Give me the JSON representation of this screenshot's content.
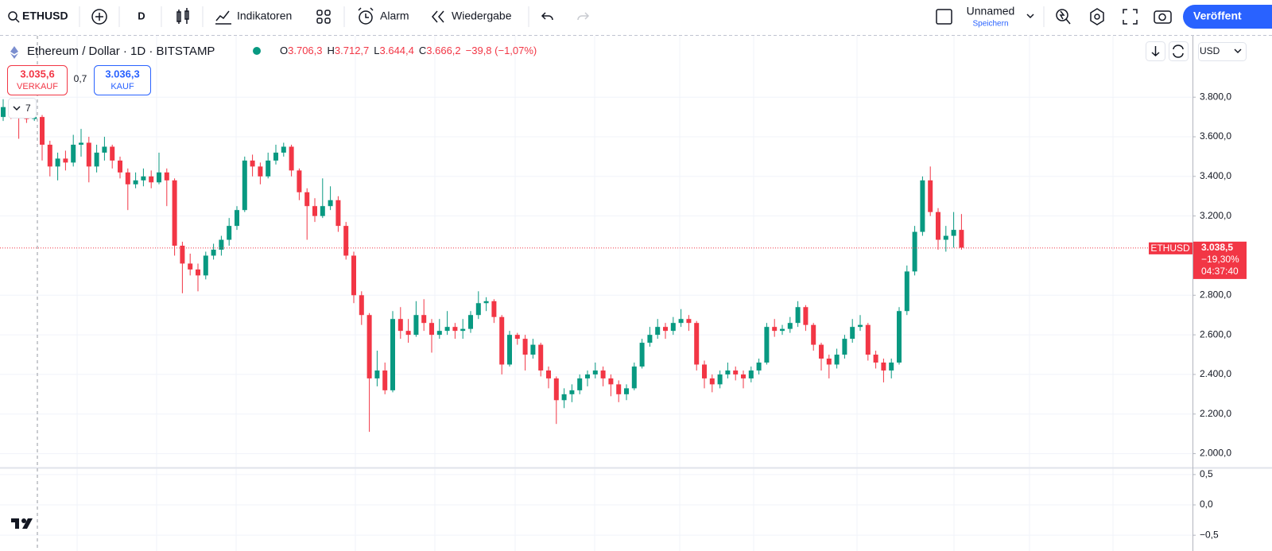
{
  "toolbar": {
    "symbol": "ETHUSD",
    "interval": "D",
    "indicators": "Indikatoren",
    "alert": "Alarm",
    "replay": "Wiedergabe",
    "layout_name": "Unnamed",
    "save": "Speichern",
    "publish": "Veröffent"
  },
  "legend": {
    "title": "Ethereum / Dollar · 1D · BITSTAMP",
    "ohlc": [
      {
        "label": "O",
        "value": "3.706,3"
      },
      {
        "label": "H",
        "value": "3.712,7"
      },
      {
        "label": "L",
        "value": "3.644,4"
      },
      {
        "label": "C",
        "value": "3.666,2"
      }
    ],
    "change": "−39,8 (−1,07%)"
  },
  "trade": {
    "sell_price": "3.035,6",
    "sell": "VERKAUF",
    "spread": "0,7",
    "buy_price": "3.036,3",
    "buy": "KAUF"
  },
  "collapse_count": "7",
  "currency": "USD",
  "chart_data": {
    "type": "candlestick",
    "up_color": "#089981",
    "down_color": "#f23645",
    "candles": [
      [
        3700,
        3790,
        3680,
        3750
      ],
      [
        3750,
        3760,
        3690,
        3720
      ],
      [
        3720,
        3730,
        3590,
        3700
      ],
      [
        3700,
        3720,
        3670,
        3690
      ],
      [
        3690,
        3720,
        3680,
        3700
      ],
      [
        3700,
        3710,
        3480,
        3560
      ],
      [
        3560,
        3580,
        3400,
        3450
      ],
      [
        3450,
        3520,
        3380,
        3490
      ],
      [
        3490,
        3530,
        3430,
        3470
      ],
      [
        3470,
        3610,
        3450,
        3560
      ],
      [
        3560,
        3640,
        3500,
        3570
      ],
      [
        3570,
        3600,
        3370,
        3450
      ],
      [
        3450,
        3560,
        3420,
        3520
      ],
      [
        3520,
        3600,
        3480,
        3550
      ],
      [
        3550,
        3560,
        3440,
        3480
      ],
      [
        3480,
        3500,
        3390,
        3420
      ],
      [
        3420,
        3440,
        3230,
        3360
      ],
      [
        3360,
        3420,
        3340,
        3380
      ],
      [
        3380,
        3440,
        3350,
        3400
      ],
      [
        3400,
        3430,
        3340,
        3370
      ],
      [
        3370,
        3520,
        3360,
        3420
      ],
      [
        3420,
        3440,
        3250,
        3380
      ],
      [
        3380,
        3390,
        3000,
        3050
      ],
      [
        3050,
        3070,
        2810,
        2960
      ],
      [
        2960,
        3010,
        2900,
        2930
      ],
      [
        2930,
        2960,
        2820,
        2900
      ],
      [
        2900,
        3020,
        2880,
        3000
      ],
      [
        3000,
        3060,
        2980,
        3030
      ],
      [
        3030,
        3100,
        3000,
        3080
      ],
      [
        3080,
        3190,
        3050,
        3150
      ],
      [
        3150,
        3250,
        3130,
        3230
      ],
      [
        3230,
        3500,
        3220,
        3480
      ],
      [
        3480,
        3510,
        3400,
        3450
      ],
      [
        3450,
        3470,
        3360,
        3400
      ],
      [
        3400,
        3520,
        3390,
        3480
      ],
      [
        3480,
        3560,
        3460,
        3520
      ],
      [
        3520,
        3570,
        3500,
        3550
      ],
      [
        3550,
        3560,
        3400,
        3430
      ],
      [
        3430,
        3440,
        3280,
        3320
      ],
      [
        3320,
        3340,
        3080,
        3250
      ],
      [
        3250,
        3290,
        3170,
        3200
      ],
      [
        3200,
        3390,
        3190,
        3250
      ],
      [
        3250,
        3350,
        3230,
        3280
      ],
      [
        3280,
        3300,
        3120,
        3150
      ],
      [
        3150,
        3170,
        2980,
        3000
      ],
      [
        3000,
        3020,
        2760,
        2800
      ],
      [
        2800,
        2820,
        2650,
        2700
      ],
      [
        2700,
        2710,
        2110,
        2380
      ],
      [
        2380,
        2520,
        2340,
        2420
      ],
      [
        2420,
        2460,
        2300,
        2320
      ],
      [
        2320,
        2720,
        2310,
        2680
      ],
      [
        2680,
        2740,
        2580,
        2620
      ],
      [
        2620,
        2680,
        2560,
        2600
      ],
      [
        2600,
        2770,
        2590,
        2700
      ],
      [
        2700,
        2780,
        2620,
        2660
      ],
      [
        2660,
        2680,
        2510,
        2600
      ],
      [
        2600,
        2680,
        2580,
        2620
      ],
      [
        2620,
        2720,
        2600,
        2640
      ],
      [
        2640,
        2660,
        2580,
        2620
      ],
      [
        2620,
        2680,
        2580,
        2630
      ],
      [
        2630,
        2720,
        2610,
        2700
      ],
      [
        2700,
        2820,
        2680,
        2760
      ],
      [
        2760,
        2790,
        2720,
        2770
      ],
      [
        2770,
        2780,
        2660,
        2690
      ],
      [
        2690,
        2700,
        2400,
        2450
      ],
      [
        2450,
        2620,
        2440,
        2600
      ],
      [
        2600,
        2610,
        2550,
        2580
      ],
      [
        2580,
        2600,
        2420,
        2500
      ],
      [
        2500,
        2580,
        2480,
        2550
      ],
      [
        2550,
        2560,
        2390,
        2420
      ],
      [
        2420,
        2440,
        2330,
        2380
      ],
      [
        2380,
        2390,
        2150,
        2270
      ],
      [
        2270,
        2330,
        2230,
        2300
      ],
      [
        2300,
        2350,
        2260,
        2320
      ],
      [
        2320,
        2400,
        2300,
        2380
      ],
      [
        2380,
        2420,
        2340,
        2400
      ],
      [
        2400,
        2460,
        2380,
        2420
      ],
      [
        2420,
        2440,
        2340,
        2380
      ],
      [
        2380,
        2400,
        2290,
        2350
      ],
      [
        2350,
        2370,
        2260,
        2300
      ],
      [
        2300,
        2350,
        2270,
        2330
      ],
      [
        2330,
        2460,
        2320,
        2440
      ],
      [
        2440,
        2580,
        2430,
        2560
      ],
      [
        2560,
        2640,
        2540,
        2600
      ],
      [
        2600,
        2680,
        2580,
        2640
      ],
      [
        2640,
        2660,
        2580,
        2620
      ],
      [
        2620,
        2690,
        2600,
        2660
      ],
      [
        2660,
        2730,
        2640,
        2680
      ],
      [
        2680,
        2700,
        2620,
        2660
      ],
      [
        2660,
        2670,
        2420,
        2450
      ],
      [
        2450,
        2470,
        2330,
        2380
      ],
      [
        2380,
        2400,
        2310,
        2350
      ],
      [
        2350,
        2420,
        2330,
        2400
      ],
      [
        2400,
        2460,
        2380,
        2420
      ],
      [
        2420,
        2440,
        2370,
        2400
      ],
      [
        2400,
        2420,
        2330,
        2380
      ],
      [
        2380,
        2440,
        2360,
        2420
      ],
      [
        2420,
        2480,
        2400,
        2460
      ],
      [
        2460,
        2660,
        2450,
        2640
      ],
      [
        2640,
        2680,
        2590,
        2620
      ],
      [
        2620,
        2650,
        2600,
        2630
      ],
      [
        2630,
        2690,
        2610,
        2660
      ],
      [
        2660,
        2770,
        2640,
        2740
      ],
      [
        2740,
        2750,
        2620,
        2650
      ],
      [
        2650,
        2660,
        2520,
        2550
      ],
      [
        2550,
        2560,
        2420,
        2480
      ],
      [
        2480,
        2500,
        2380,
        2450
      ],
      [
        2450,
        2530,
        2430,
        2500
      ],
      [
        2500,
        2600,
        2480,
        2580
      ],
      [
        2580,
        2680,
        2560,
        2640
      ],
      [
        2640,
        2700,
        2620,
        2650
      ],
      [
        2650,
        2660,
        2470,
        2500
      ],
      [
        2500,
        2520,
        2430,
        2460
      ],
      [
        2460,
        2480,
        2360,
        2420
      ],
      [
        2420,
        2480,
        2380,
        2460
      ],
      [
        2460,
        2740,
        2450,
        2720
      ],
      [
        2720,
        2950,
        2700,
        2920
      ],
      [
        2920,
        3150,
        2900,
        3120
      ],
      [
        3120,
        3400,
        3100,
        3380
      ],
      [
        3380,
        3450,
        3200,
        3220
      ],
      [
        3220,
        3240,
        3030,
        3080
      ],
      [
        3080,
        3150,
        3020,
        3100
      ],
      [
        3100,
        3220,
        3040,
        3130
      ],
      [
        3130,
        3210,
        3030,
        3040
      ]
    ],
    "ylim": [
      1930,
      4110
    ],
    "yticks": [
      {
        "value": 2000,
        "label": "2.000,0"
      },
      {
        "value": 2200,
        "label": "2.200,0"
      },
      {
        "value": 2400,
        "label": "2.400,0"
      },
      {
        "value": 2600,
        "label": "2.600,0"
      },
      {
        "value": 2800,
        "label": "2.800,0"
      },
      {
        "value": 3200,
        "label": "3.200,0"
      },
      {
        "value": 3400,
        "label": "3.400,0"
      },
      {
        "value": 3600,
        "label": "3.600,0"
      },
      {
        "value": 3800,
        "label": "3.800,0"
      }
    ],
    "grid": true,
    "last_price": {
      "symbol": "ETHUSD",
      "value": 3038.5,
      "label": "3.038,5",
      "change": "−19,30%",
      "countdown": "04:37:40"
    },
    "pane2_ylim": [
      -0.76,
      0.59
    ],
    "pane2_yticks": [
      {
        "value": 0.5,
        "label": "0,5"
      },
      {
        "value": 0,
        "label": "0,0"
      },
      {
        "value": -0.5,
        "label": "−0,5"
      }
    ]
  }
}
